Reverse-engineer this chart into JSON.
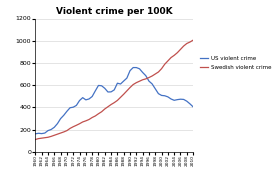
{
  "title": "Violent crime per 100K",
  "us_years": [
    1960,
    1961,
    1962,
    1963,
    1964,
    1965,
    1966,
    1967,
    1968,
    1969,
    1970,
    1971,
    1972,
    1973,
    1974,
    1975,
    1976,
    1977,
    1978,
    1979,
    1980,
    1981,
    1982,
    1983,
    1984,
    1985,
    1986,
    1987,
    1988,
    1989,
    1990,
    1991,
    1992,
    1993,
    1994,
    1995,
    1996,
    1997,
    1998,
    1999,
    2000,
    2001,
    2002,
    2003,
    2004,
    2005,
    2006,
    2007,
    2008,
    2009,
    2010
  ],
  "us_values": [
    161,
    166,
    163,
    168,
    190,
    200,
    220,
    253,
    298,
    328,
    364,
    396,
    401,
    417,
    461,
    487,
    467,
    475,
    497,
    548,
    597,
    594,
    571,
    538,
    539,
    557,
    617,
    610,
    637,
    663,
    730,
    758,
    758,
    747,
    714,
    685,
    636,
    611,
    567,
    523,
    507,
    504,
    494,
    475,
    463,
    469,
    473,
    471,
    455,
    431,
    404
  ],
  "sw_years": [
    1960,
    1961,
    1962,
    1963,
    1964,
    1965,
    1966,
    1967,
    1968,
    1969,
    1970,
    1971,
    1972,
    1973,
    1974,
    1975,
    1976,
    1977,
    1978,
    1979,
    1980,
    1981,
    1982,
    1983,
    1984,
    1985,
    1986,
    1987,
    1988,
    1989,
    1990,
    1991,
    1992,
    1993,
    1994,
    1995,
    1996,
    1997,
    1998,
    1999,
    2000,
    2001,
    2002,
    2003,
    2004,
    2005,
    2006,
    2007,
    2008,
    2009,
    2010
  ],
  "sw_values": [
    110,
    118,
    122,
    126,
    130,
    138,
    148,
    158,
    168,
    178,
    190,
    210,
    225,
    238,
    252,
    268,
    278,
    290,
    308,
    322,
    342,
    360,
    385,
    405,
    425,
    442,
    462,
    490,
    518,
    548,
    578,
    605,
    622,
    635,
    648,
    656,
    668,
    682,
    700,
    718,
    748,
    788,
    818,
    848,
    868,
    892,
    922,
    952,
    975,
    988,
    1005
  ],
  "us_color": "#4472c4",
  "sw_color": "#c0504d",
  "ylim": [
    0,
    1200
  ],
  "yticks": [
    0,
    200,
    400,
    600,
    800,
    1000,
    1200
  ],
  "us_label": "US violent crime",
  "sw_label": "Swedish violent crime",
  "bg_color": "#ffffff",
  "grid_color": "#d0d0d0",
  "figsize": [
    2.72,
    1.85
  ],
  "dpi": 100
}
